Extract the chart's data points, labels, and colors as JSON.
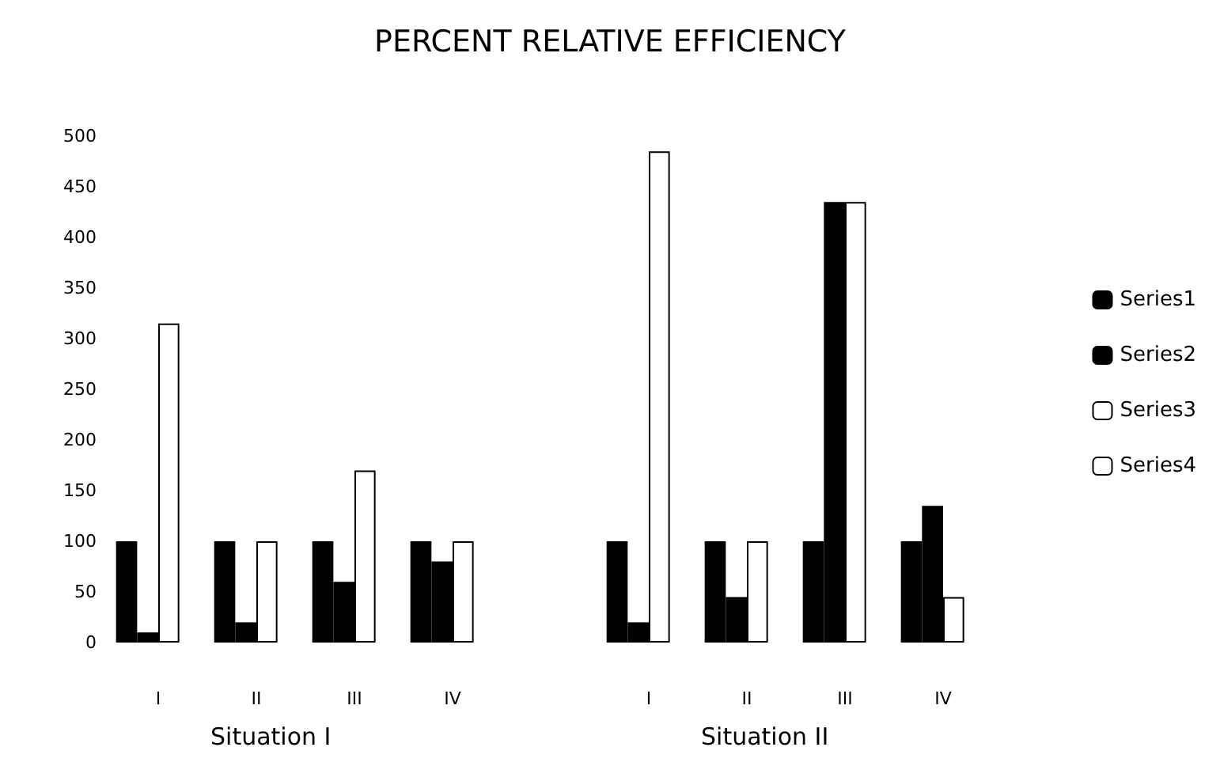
{
  "chart_data": {
    "type": "bar",
    "title": "PERCENT RELATIVE EFFICIENCY",
    "categories": [
      "I",
      "II",
      "III",
      "IV",
      null,
      "I",
      "II",
      "III",
      "IV"
    ],
    "series": [
      {
        "name": "Series1",
        "color": "#000000",
        "values": [
          100,
          100,
          100,
          100,
          null,
          100,
          100,
          100,
          100
        ]
      },
      {
        "name": "Series2",
        "color": "#000000",
        "values": [
          10,
          20,
          60,
          80,
          null,
          20,
          45,
          435,
          135
        ]
      },
      {
        "name": "Series3",
        "color": "#ffffff",
        "values": [
          315,
          100,
          170,
          100,
          null,
          485,
          100,
          435,
          45
        ]
      },
      {
        "name": "Series4",
        "color": "#ffffff",
        "values": [
          null,
          null,
          null,
          null,
          null,
          null,
          null,
          null,
          null
        ]
      }
    ],
    "ylim": [
      0,
      500
    ],
    "yticks": [
      0,
      50,
      100,
      150,
      200,
      250,
      300,
      350,
      400,
      450,
      500
    ],
    "annotations": [
      "Situation I",
      "Situation II"
    ],
    "grid": false,
    "legend": "right"
  }
}
